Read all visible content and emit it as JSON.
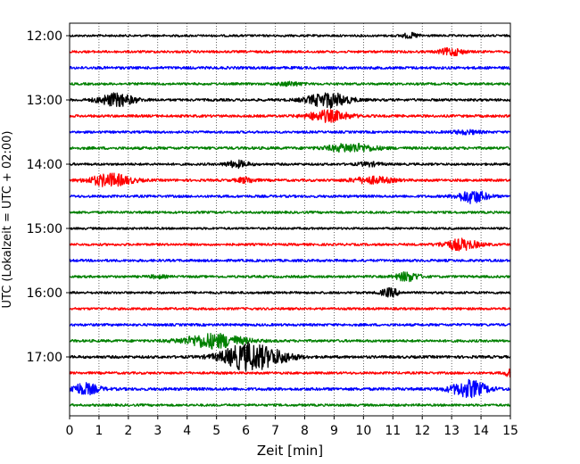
{
  "chart_data": {
    "type": "line",
    "title": "",
    "xlabel": "Zeit  [min]",
    "ylabel": "UTC (Lokalzeit = UTC + 02:00)",
    "xlim": [
      0,
      15
    ],
    "x_ticks": [
      "0",
      "1",
      "2",
      "3",
      "4",
      "5",
      "6",
      "7",
      "8",
      "9",
      "10",
      "11",
      "12",
      "13",
      "14",
      "15"
    ],
    "y_ticks": [
      "12:00",
      "13:00",
      "14:00",
      "15:00",
      "16:00",
      "17:00"
    ],
    "trace_interval_min": 15,
    "start_time": "12:00",
    "grid": "x-dotted",
    "colors": [
      "#000000",
      "#ff0000",
      "#0000ff",
      "#008000"
    ],
    "traces": [
      {
        "start": "12:00",
        "color": "#000000",
        "noise": 1.2,
        "events": [
          {
            "t": 11.6,
            "amp": 2.5,
            "width": 0.3
          }
        ]
      },
      {
        "start": "12:15",
        "color": "#ff0000",
        "noise": 1.3,
        "events": [
          {
            "t": 13.0,
            "amp": 4.0,
            "width": 0.4
          }
        ]
      },
      {
        "start": "12:30",
        "color": "#0000ff",
        "noise": 1.5,
        "events": []
      },
      {
        "start": "12:45",
        "color": "#008000",
        "noise": 1.3,
        "events": [
          {
            "t": 7.5,
            "amp": 2.0,
            "width": 0.4
          }
        ]
      },
      {
        "start": "13:00",
        "color": "#000000",
        "noise": 1.4,
        "events": [
          {
            "t": 1.6,
            "amp": 7.0,
            "width": 0.6
          },
          {
            "t": 8.8,
            "amp": 8.0,
            "width": 0.7
          }
        ]
      },
      {
        "start": "13:15",
        "color": "#ff0000",
        "noise": 1.4,
        "events": [
          {
            "t": 8.8,
            "amp": 6.0,
            "width": 0.7
          }
        ]
      },
      {
        "start": "13:30",
        "color": "#0000ff",
        "noise": 1.3,
        "events": [
          {
            "t": 13.5,
            "amp": 2.0,
            "width": 0.5
          }
        ]
      },
      {
        "start": "13:45",
        "color": "#008000",
        "noise": 1.5,
        "events": [
          {
            "t": 9.6,
            "amp": 4.5,
            "width": 0.8
          }
        ]
      },
      {
        "start": "14:00",
        "color": "#000000",
        "noise": 1.3,
        "events": [
          {
            "t": 5.7,
            "amp": 3.5,
            "width": 0.4
          },
          {
            "t": 10.2,
            "amp": 2.0,
            "width": 0.4
          }
        ]
      },
      {
        "start": "14:15",
        "color": "#ff0000",
        "noise": 1.4,
        "events": [
          {
            "t": 1.4,
            "amp": 7.0,
            "width": 0.7
          },
          {
            "t": 6.0,
            "amp": 3.0,
            "width": 0.3
          },
          {
            "t": 10.3,
            "amp": 3.5,
            "width": 0.7
          }
        ]
      },
      {
        "start": "14:30",
        "color": "#0000ff",
        "noise": 1.4,
        "events": [
          {
            "t": 13.7,
            "amp": 7.0,
            "width": 0.5
          }
        ]
      },
      {
        "start": "14:45",
        "color": "#008000",
        "noise": 1.3,
        "events": []
      },
      {
        "start": "15:00",
        "color": "#000000",
        "noise": 1.2,
        "events": []
      },
      {
        "start": "15:15",
        "color": "#ff0000",
        "noise": 1.3,
        "events": [
          {
            "t": 13.3,
            "amp": 6.0,
            "width": 0.6
          }
        ]
      },
      {
        "start": "15:30",
        "color": "#0000ff",
        "noise": 1.4,
        "events": []
      },
      {
        "start": "15:45",
        "color": "#008000",
        "noise": 1.3,
        "events": [
          {
            "t": 11.5,
            "amp": 5.0,
            "width": 0.4
          },
          {
            "t": 3.0,
            "amp": 1.5,
            "width": 0.3
          }
        ]
      },
      {
        "start": "16:00",
        "color": "#000000",
        "noise": 1.3,
        "events": [
          {
            "t": 10.9,
            "amp": 4.5,
            "width": 0.3
          }
        ]
      },
      {
        "start": "16:15",
        "color": "#ff0000",
        "noise": 1.3,
        "events": []
      },
      {
        "start": "16:30",
        "color": "#0000ff",
        "noise": 1.4,
        "events": []
      },
      {
        "start": "16:45",
        "color": "#008000",
        "noise": 1.4,
        "events": [
          {
            "t": 4.9,
            "amp": 8.0,
            "width": 1.0
          }
        ]
      },
      {
        "start": "17:00",
        "color": "#000000",
        "noise": 1.5,
        "events": [
          {
            "t": 6.1,
            "amp": 15.0,
            "width": 0.9
          },
          {
            "t": 7.2,
            "amp": 3.0,
            "width": 0.6
          }
        ]
      },
      {
        "start": "17:15",
        "color": "#ff0000",
        "noise": 1.3,
        "events": [
          {
            "t": 15.0,
            "amp": 4.0,
            "width": 0.2
          }
        ]
      },
      {
        "start": "17:30",
        "color": "#0000ff",
        "noise": 1.6,
        "events": [
          {
            "t": 0.5,
            "amp": 6.0,
            "width": 0.5
          },
          {
            "t": 13.6,
            "amp": 9.0,
            "width": 0.6
          }
        ]
      },
      {
        "start": "17:45",
        "color": "#008000",
        "noise": 1.3,
        "events": []
      }
    ]
  }
}
